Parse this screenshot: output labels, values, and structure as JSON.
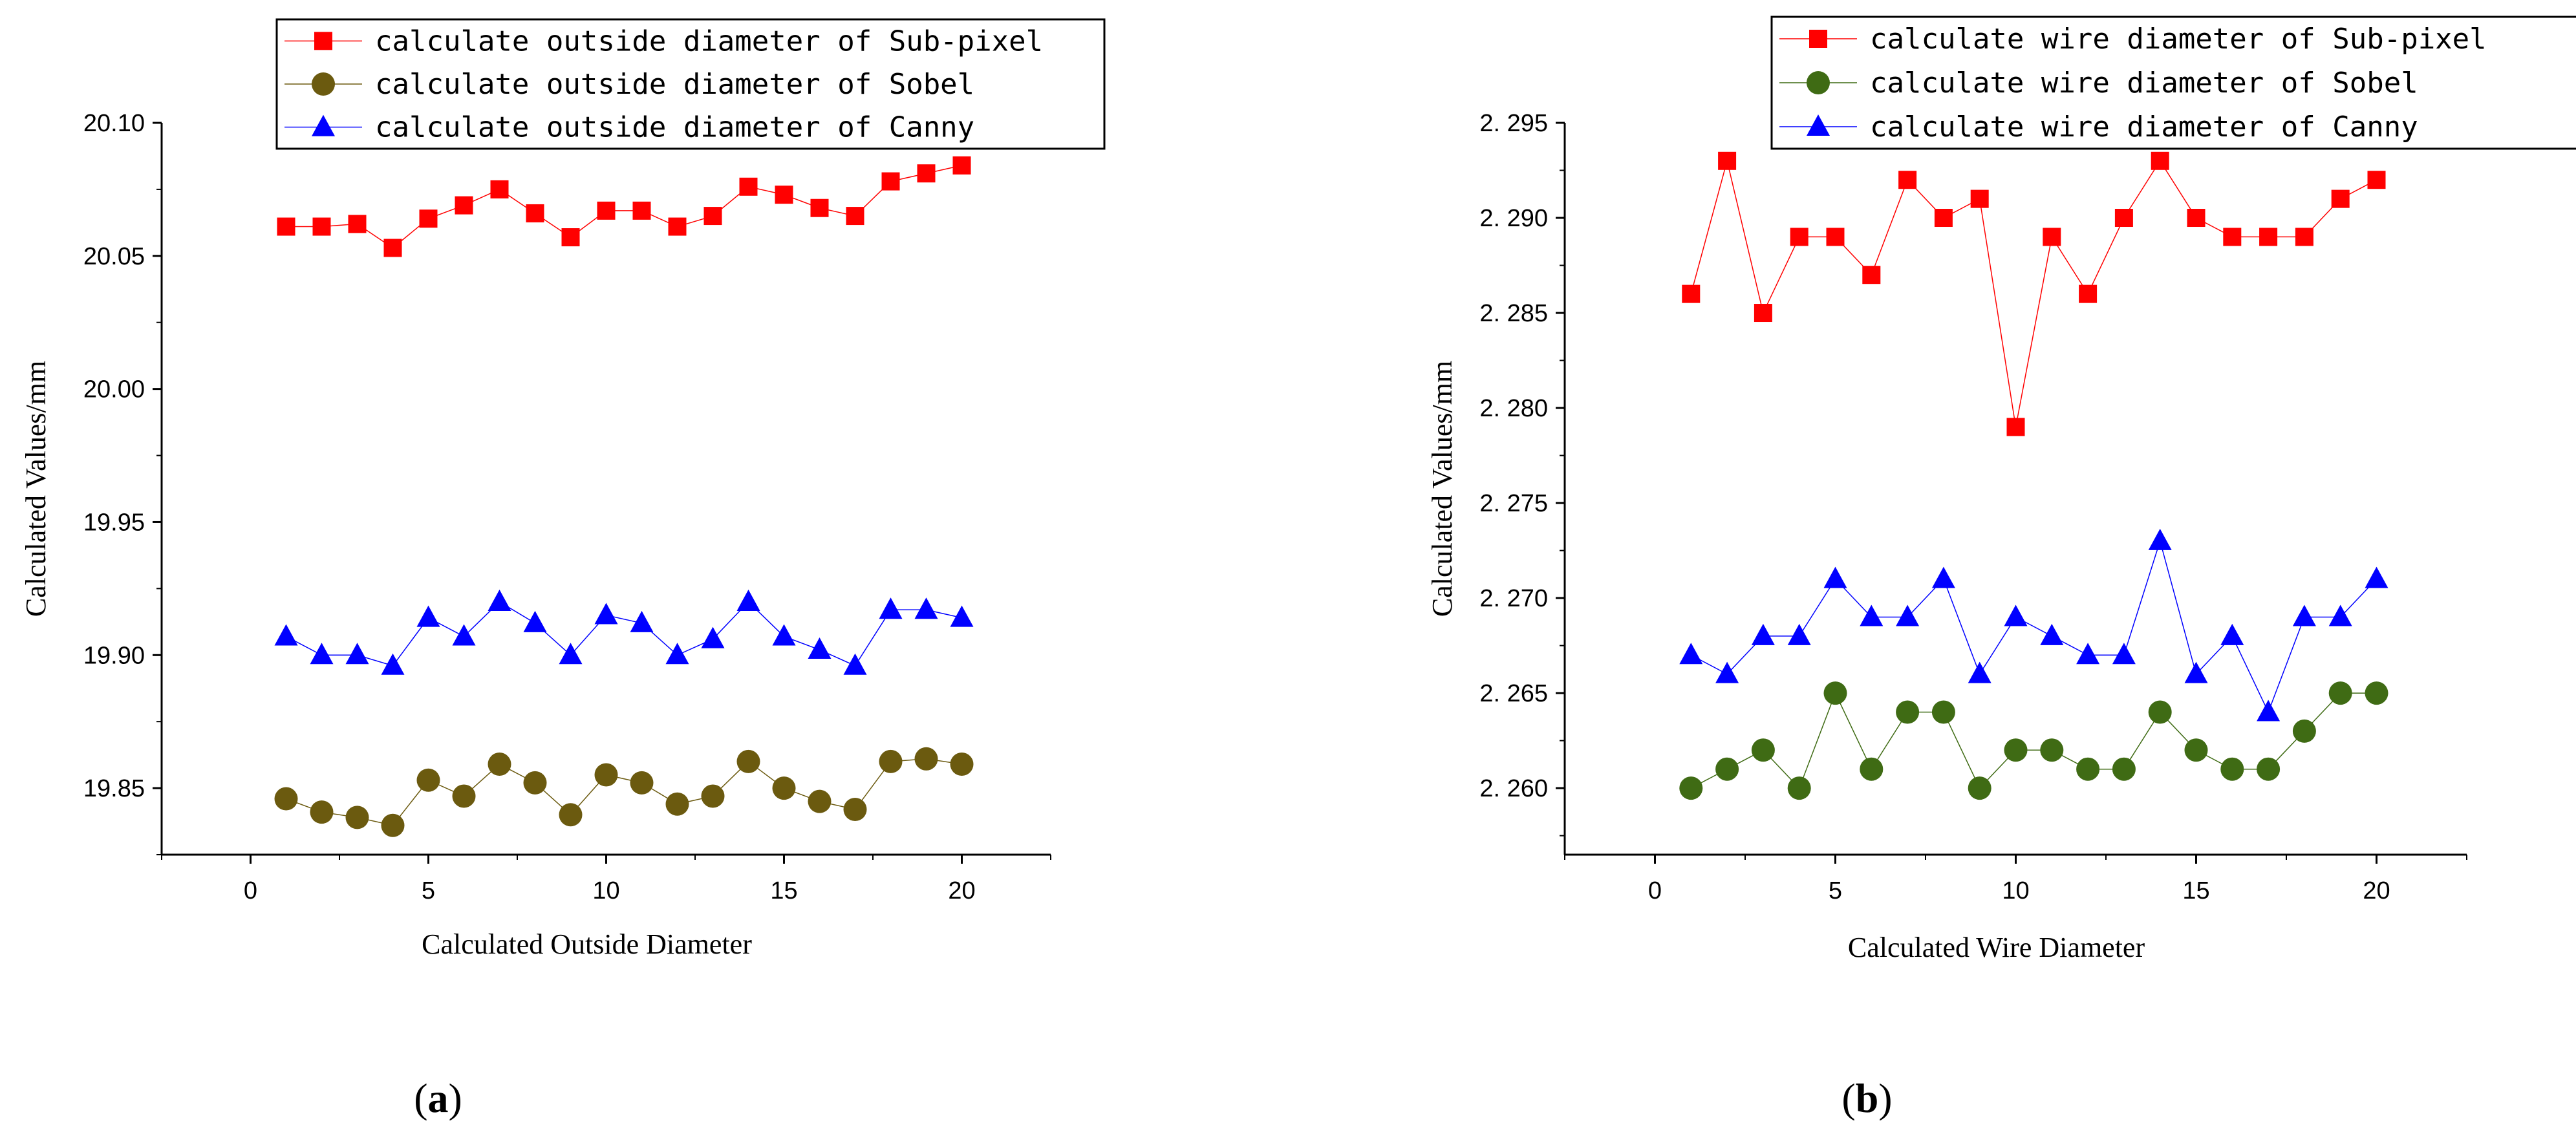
{
  "chart_data": [
    {
      "type": "line",
      "panel_label": {
        "open": "(",
        "letter": "a",
        "close": ")"
      },
      "xlabel": "Calculated Outside Diameter",
      "ylabel": "Calculated Values/mm",
      "xlim": [
        -2.5,
        22.5
      ],
      "ylim": [
        19.825,
        20.1
      ],
      "xticks": [
        0,
        5,
        10,
        15,
        20
      ],
      "yticks": [
        19.85,
        19.9,
        19.95,
        20.0,
        20.05,
        20.1
      ],
      "ytick_labels": [
        "19.85",
        "19.90",
        "19.95",
        "20.00",
        "20.05",
        "20.10"
      ],
      "legend_position": "top-right",
      "x": [
        1,
        2,
        3,
        4,
        5,
        6,
        7,
        8,
        9,
        10,
        11,
        12,
        13,
        14,
        15,
        16,
        17,
        18,
        19,
        20
      ],
      "series": [
        {
          "name": "calculate outside diameter of Sub-pixel",
          "marker": "square",
          "color": "#ff0000",
          "values": [
            20.061,
            20.061,
            20.062,
            20.053,
            20.064,
            20.069,
            20.075,
            20.066,
            20.057,
            20.067,
            20.067,
            20.061,
            20.065,
            20.076,
            20.073,
            20.068,
            20.065,
            20.078,
            20.081,
            20.084
          ]
        },
        {
          "name": "calculate outside diameter of Sobel",
          "marker": "circle",
          "color": "#6b5a0f",
          "values": [
            19.846,
            19.841,
            19.839,
            19.836,
            19.853,
            19.847,
            19.859,
            19.852,
            19.84,
            19.855,
            19.852,
            19.844,
            19.847,
            19.86,
            19.85,
            19.845,
            19.842,
            19.86,
            19.861,
            19.859
          ]
        },
        {
          "name": "calculate outside diameter of Canny",
          "marker": "triangle",
          "color": "#0000ff",
          "values": [
            19.907,
            19.9,
            19.9,
            19.896,
            19.914,
            19.907,
            19.92,
            19.912,
            19.9,
            19.915,
            19.912,
            19.9,
            19.906,
            19.92,
            19.907,
            19.902,
            19.896,
            19.917,
            19.917,
            19.914
          ]
        }
      ]
    },
    {
      "type": "line",
      "panel_label": {
        "open": "(",
        "letter": "b",
        "close": ")"
      },
      "xlabel": "Calculated Wire Diameter",
      "ylabel": "Calculated Values/mm",
      "xlim": [
        -2.5,
        22.5
      ],
      "ylim": [
        2.2565,
        2.295
      ],
      "xticks": [
        0,
        5,
        10,
        15,
        20
      ],
      "yticks": [
        2.26,
        2.265,
        2.27,
        2.275,
        2.28,
        2.285,
        2.29,
        2.295
      ],
      "ytick_labels": [
        "2. 260",
        "2. 265",
        "2. 270",
        "2. 275",
        "2. 280",
        "2. 285",
        "2. 290",
        "2. 295"
      ],
      "legend_position": "top-right",
      "x": [
        1,
        2,
        3,
        4,
        5,
        6,
        7,
        8,
        9,
        10,
        11,
        12,
        13,
        14,
        15,
        16,
        17,
        18,
        19,
        20
      ],
      "series": [
        {
          "name": "calculate wire diameter of Sub-pixel",
          "marker": "square",
          "color": "#ff0000",
          "values": [
            2.286,
            2.293,
            2.285,
            2.289,
            2.289,
            2.287,
            2.292,
            2.29,
            2.291,
            2.279,
            2.289,
            2.286,
            2.29,
            2.293,
            2.29,
            2.289,
            2.289,
            2.289,
            2.291,
            2.292
          ]
        },
        {
          "name": "calculate wire diameter of Sobel",
          "marker": "circle",
          "color": "#3f6b14",
          "values": [
            2.26,
            2.261,
            2.262,
            2.26,
            2.265,
            2.261,
            2.264,
            2.264,
            2.26,
            2.262,
            2.262,
            2.261,
            2.261,
            2.264,
            2.262,
            2.261,
            2.261,
            2.263,
            2.265,
            2.265
          ]
        },
        {
          "name": "calculate wire diameter of Canny",
          "marker": "triangle",
          "color": "#0000ff",
          "values": [
            2.267,
            2.266,
            2.268,
            2.268,
            2.271,
            2.269,
            2.269,
            2.271,
            2.266,
            2.269,
            2.268,
            2.267,
            2.267,
            2.273,
            2.266,
            2.268,
            2.264,
            2.269,
            2.269,
            2.271
          ]
        }
      ]
    }
  ]
}
